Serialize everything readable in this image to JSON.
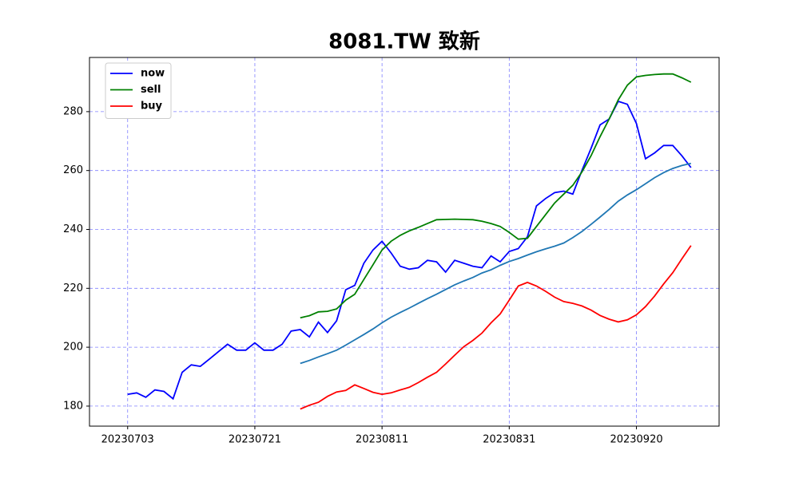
{
  "chart_data": {
    "type": "line",
    "title": "8081.TW 致新",
    "categories": [
      "20230703",
      null,
      null,
      null,
      null,
      null,
      null,
      null,
      null,
      null,
      null,
      null,
      null,
      null,
      "20230721",
      null,
      null,
      null,
      null,
      null,
      null,
      null,
      null,
      null,
      null,
      null,
      null,
      null,
      "20230811",
      null,
      null,
      null,
      null,
      null,
      null,
      null,
      null,
      null,
      null,
      null,
      null,
      null,
      "20230831",
      null,
      null,
      null,
      null,
      null,
      null,
      null,
      null,
      null,
      null,
      null,
      null,
      null,
      "20230920",
      null,
      null,
      null,
      null,
      null,
      null
    ],
    "series": [
      {
        "name": "now",
        "color": "#0000ff",
        "values": [
          184,
          184.5,
          183,
          185.5,
          185,
          182.5,
          191.5,
          194,
          193.5,
          196,
          198.5,
          201,
          199,
          199,
          201.5,
          199,
          199,
          201,
          205.5,
          206,
          203.5,
          208.5,
          205,
          209,
          219.5,
          221,
          228.5,
          233,
          236,
          232,
          227.5,
          226.5,
          227,
          229.5,
          229,
          225.5,
          229.5,
          228.5,
          227.5,
          227,
          231,
          229,
          232.5,
          233.5,
          237.5,
          248,
          250.5,
          252.5,
          253,
          252,
          260,
          267.5,
          275.5,
          277.5,
          283.5,
          282.5,
          276,
          264,
          266,
          268.5,
          268.5,
          265,
          261
        ]
      },
      {
        "name": "sell",
        "color": "#008000",
        "values": [
          null,
          null,
          null,
          null,
          null,
          null,
          null,
          null,
          null,
          null,
          null,
          null,
          null,
          null,
          null,
          null,
          null,
          null,
          null,
          210,
          210.7,
          212,
          212.2,
          213,
          216,
          218,
          223,
          228,
          233,
          236,
          238,
          239.5,
          240.7,
          242,
          243.3,
          243.4,
          243.5,
          243.4,
          243.3,
          242.8,
          242,
          241,
          239,
          236.7,
          237,
          241,
          245,
          249,
          252,
          255,
          259.5,
          265,
          271.5,
          277.5,
          284,
          289,
          291.8,
          292.3,
          292.6,
          292.8,
          292.8,
          291.5,
          290
        ]
      },
      {
        "name": "buy",
        "color": "#ff0000",
        "values": [
          null,
          null,
          null,
          null,
          null,
          null,
          null,
          null,
          null,
          null,
          null,
          null,
          null,
          null,
          null,
          null,
          null,
          null,
          null,
          179,
          180.3,
          181.3,
          183.3,
          184.8,
          185.3,
          187.2,
          186,
          184.7,
          184,
          184.5,
          185.5,
          186.4,
          188,
          189.8,
          191.5,
          194.3,
          197.3,
          200.2,
          202.3,
          204.8,
          208.3,
          211.3,
          216,
          220.8,
          222,
          220.8,
          219,
          217,
          215.5,
          214.9,
          214,
          212.6,
          210.8,
          209.5,
          208.6,
          209.3,
          211,
          213.8,
          217.4,
          221.5,
          225.3,
          230,
          234.5
        ]
      },
      {
        "color": "#1f77b4",
        "values": [
          null,
          null,
          null,
          null,
          null,
          null,
          null,
          null,
          null,
          null,
          null,
          null,
          null,
          null,
          null,
          null,
          null,
          null,
          null,
          194.5,
          195.5,
          196.7,
          197.8,
          199,
          200.7,
          202.5,
          204.3,
          206.2,
          208.3,
          210.2,
          211.8,
          213.3,
          214.9,
          216.5,
          218,
          219.6,
          221.2,
          222.5,
          223.7,
          225.2,
          226.3,
          227.8,
          229.1,
          230.1,
          231.3,
          232.4,
          233.4,
          234.3,
          235.4,
          237.2,
          239.3,
          241.7,
          244.2,
          246.8,
          249.6,
          251.7,
          253.5,
          255.5,
          257.6,
          259.3,
          260.7,
          261.7,
          262.4
        ]
      }
    ],
    "xlim": [
      -4.2,
      65.1
    ],
    "ylim": [
      173.2,
      298.4
    ],
    "yticks": [
      180,
      200,
      220,
      240,
      260,
      280
    ],
    "grid": true,
    "legend": "upper left"
  }
}
